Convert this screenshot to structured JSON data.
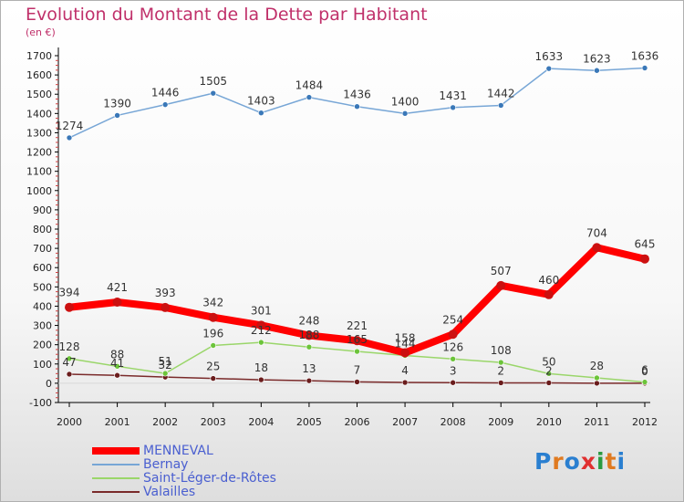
{
  "title": "Evolution du Montant de la Dette par Habitant",
  "unit": "(en €)",
  "logo": "Proxiti",
  "chart_data": {
    "type": "line",
    "x": [
      2000,
      2001,
      2002,
      2003,
      2004,
      2005,
      2006,
      2007,
      2008,
      2009,
      2010,
      2011,
      2012
    ],
    "ylim": [
      -100,
      1700
    ],
    "ytick_step": 100,
    "grid": false,
    "legend_position": "bottom-left",
    "series": [
      {
        "name": "MENNEVAL",
        "color": "#ff0000",
        "point_color": "#cc1010",
        "thick": true,
        "values": [
          394,
          421,
          393,
          342,
          301,
          248,
          221,
          158,
          254,
          507,
          460,
          704,
          645
        ]
      },
      {
        "name": "Bernay",
        "color": "#77a6d6",
        "point_color": "#3a78b8",
        "thick": false,
        "values": [
          1274,
          1390,
          1446,
          1505,
          1403,
          1484,
          1436,
          1400,
          1431,
          1442,
          1633,
          1623,
          1636
        ]
      },
      {
        "name": "Saint-Léger-de-Rôtes",
        "color": "#9ad66a",
        "point_color": "#6cc43a",
        "thick": false,
        "values": [
          128,
          88,
          51,
          196,
          212,
          188,
          165,
          144,
          126,
          108,
          50,
          28,
          6
        ]
      },
      {
        "name": "Valailles",
        "color": "#7a2a2a",
        "point_color": "#6a1c1c",
        "thick": false,
        "values": [
          47,
          41,
          32,
          25,
          18,
          13,
          7,
          4,
          3,
          2,
          2,
          0,
          0
        ]
      }
    ],
    "data_labels": [
      [
        "394",
        "421",
        "393",
        "342",
        "301",
        "248",
        "221",
        "158",
        "254",
        "507",
        "460",
        "704",
        "645"
      ],
      [
        "1274",
        "1390",
        "1446",
        "1505",
        "1403",
        "1484",
        "1436",
        "1400",
        "1431",
        "1442",
        "1633",
        "1623",
        "1636"
      ],
      [
        "128",
        "88",
        "51",
        "196",
        "212",
        "188",
        "165",
        "144",
        "126",
        "108",
        "50",
        "28",
        "6"
      ],
      [
        "47",
        "41",
        "32",
        "25",
        "18",
        "13",
        "7",
        "4",
        "3",
        "2",
        "2",
        "",
        "0"
      ]
    ]
  }
}
